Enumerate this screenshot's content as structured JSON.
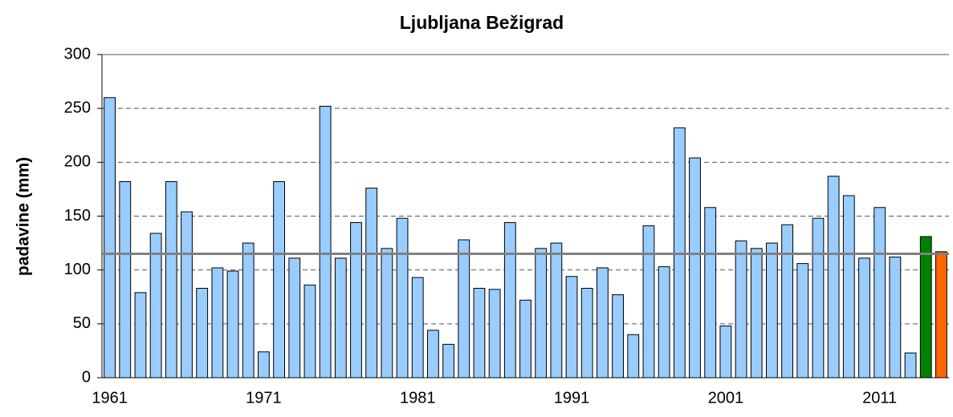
{
  "chart_data": {
    "type": "bar",
    "title": "Ljubljana Bežigrad",
    "ylabel": "padavine (mm)",
    "categories": [
      "1961",
      null,
      null,
      null,
      null,
      null,
      null,
      null,
      null,
      null,
      "1971",
      null,
      null,
      null,
      null,
      null,
      null,
      null,
      null,
      null,
      "1981",
      null,
      null,
      null,
      null,
      null,
      null,
      null,
      null,
      null,
      "1991",
      null,
      null,
      null,
      null,
      null,
      null,
      null,
      null,
      null,
      "2001",
      null,
      null,
      null,
      null,
      null,
      null,
      null,
      null,
      null,
      "2011",
      null,
      null,
      null,
      null
    ],
    "values": [
      260,
      182,
      79,
      134,
      182,
      154,
      83,
      102,
      99,
      125,
      24,
      182,
      111,
      86,
      252,
      111,
      144,
      176,
      120,
      148,
      93,
      44,
      31,
      128,
      83,
      82,
      144,
      72,
      120,
      125,
      94,
      83,
      102,
      77,
      40,
      141,
      103,
      232,
      204,
      158,
      48,
      127,
      120,
      125,
      142,
      106,
      148,
      187,
      169,
      111,
      158,
      112,
      23,
      131,
      117
    ],
    "colors": [
      "#99ccff",
      "#99ccff",
      "#99ccff",
      "#99ccff",
      "#99ccff",
      "#99ccff",
      "#99ccff",
      "#99ccff",
      "#99ccff",
      "#99ccff",
      "#99ccff",
      "#99ccff",
      "#99ccff",
      "#99ccff",
      "#99ccff",
      "#99ccff",
      "#99ccff",
      "#99ccff",
      "#99ccff",
      "#99ccff",
      "#99ccff",
      "#99ccff",
      "#99ccff",
      "#99ccff",
      "#99ccff",
      "#99ccff",
      "#99ccff",
      "#99ccff",
      "#99ccff",
      "#99ccff",
      "#99ccff",
      "#99ccff",
      "#99ccff",
      "#99ccff",
      "#99ccff",
      "#99ccff",
      "#99ccff",
      "#99ccff",
      "#99ccff",
      "#99ccff",
      "#99ccff",
      "#99ccff",
      "#99ccff",
      "#99ccff",
      "#99ccff",
      "#99ccff",
      "#99ccff",
      "#99ccff",
      "#99ccff",
      "#99ccff",
      "#99ccff",
      "#99ccff",
      "#99ccff",
      "#008000",
      "#ff6600"
    ],
    "reference_line": {
      "value": 115,
      "color": "#808080"
    },
    "ylim": [
      0,
      300
    ],
    "yticks": [
      0,
      50,
      100,
      150,
      200,
      250,
      300
    ],
    "grid": true
  }
}
